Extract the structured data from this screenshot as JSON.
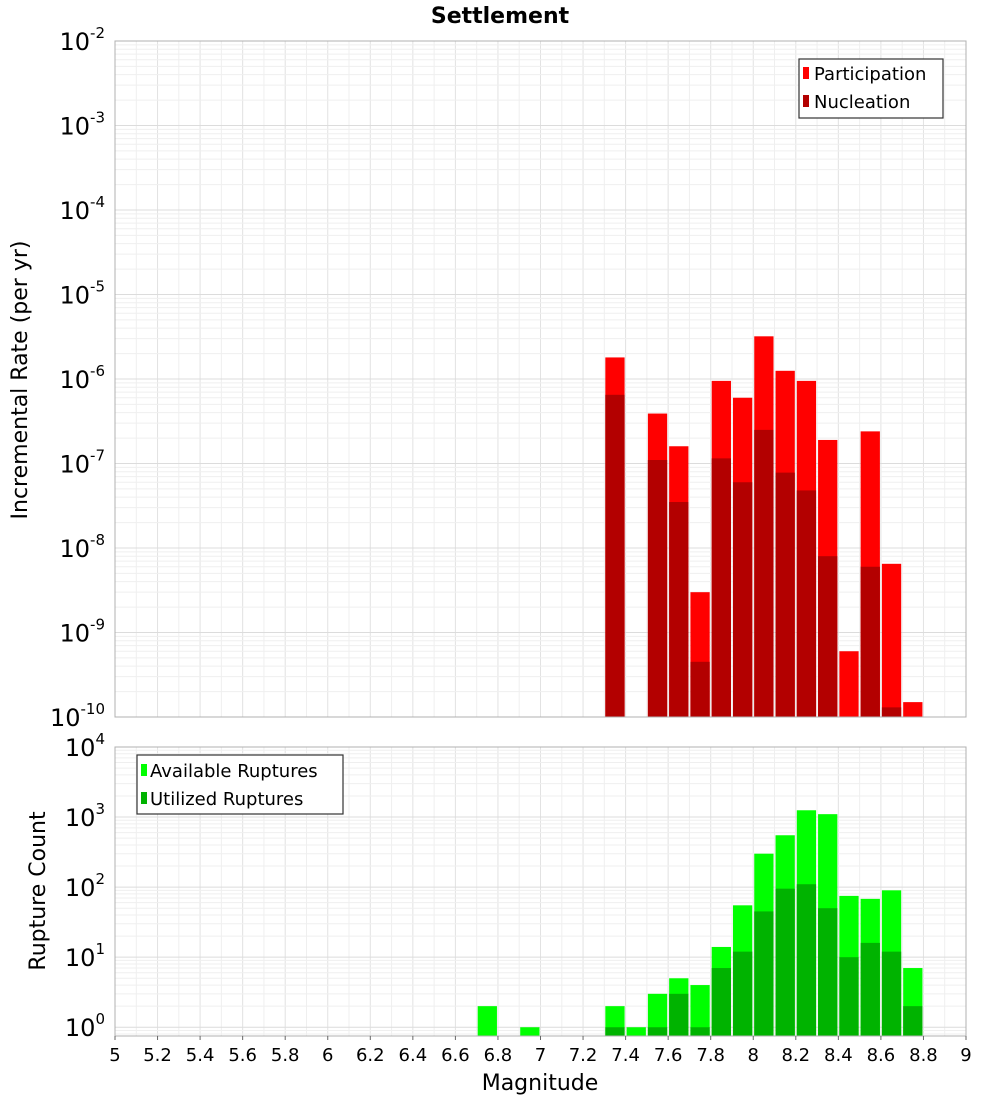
{
  "title": "Settlement",
  "xlabel": "Magnitude",
  "chart_data": [
    {
      "type": "bar",
      "title": "Settlement",
      "xlabel": "",
      "ylabel": "Incremental Rate (per yr)",
      "yscale": "log",
      "xlim": [
        5,
        9
      ],
      "ylim": [
        1e-10,
        0.01
      ],
      "yticks": [
        1e-10,
        1e-09,
        1e-08,
        1e-07,
        1e-06,
        1e-05,
        0.0001,
        0.001,
        0.01
      ],
      "ytick_labels": [
        "10^-10",
        "10^-9",
        "10^-8",
        "10^-7",
        "10^-6",
        "10^-5",
        "10^-4",
        "10^-3",
        "10^-2"
      ],
      "grid": true,
      "legend_position": "top-right",
      "bar_width": 0.1,
      "series": [
        {
          "name": "Participation",
          "color": "#ff0000",
          "points": [
            {
              "x": 7.35,
              "y": 1.8e-06
            },
            {
              "x": 7.55,
              "y": 3.9e-07
            },
            {
              "x": 7.65,
              "y": 1.6e-07
            },
            {
              "x": 7.75,
              "y": 3e-09
            },
            {
              "x": 7.85,
              "y": 9.5e-07
            },
            {
              "x": 7.95,
              "y": 6e-07
            },
            {
              "x": 8.05,
              "y": 3.2e-06
            },
            {
              "x": 8.15,
              "y": 1.25e-06
            },
            {
              "x": 8.25,
              "y": 9.5e-07
            },
            {
              "x": 8.35,
              "y": 1.9e-07
            },
            {
              "x": 8.45,
              "y": 6e-10
            },
            {
              "x": 8.55,
              "y": 2.4e-07
            },
            {
              "x": 8.65,
              "y": 6.5e-09
            },
            {
              "x": 8.75,
              "y": 1.5e-10
            }
          ]
        },
        {
          "name": "Nucleation",
          "color": "#b30000",
          "points": [
            {
              "x": 7.35,
              "y": 6.5e-07
            },
            {
              "x": 7.55,
              "y": 1.1e-07
            },
            {
              "x": 7.65,
              "y": 3.5e-08
            },
            {
              "x": 7.75,
              "y": 4.5e-10
            },
            {
              "x": 7.85,
              "y": 1.15e-07
            },
            {
              "x": 7.95,
              "y": 6e-08
            },
            {
              "x": 8.05,
              "y": 2.5e-07
            },
            {
              "x": 8.15,
              "y": 7.8e-08
            },
            {
              "x": 8.25,
              "y": 4.8e-08
            },
            {
              "x": 8.35,
              "y": 8e-09
            },
            {
              "x": 8.55,
              "y": 6e-09
            },
            {
              "x": 8.65,
              "y": 1.3e-10
            }
          ]
        }
      ]
    },
    {
      "type": "bar",
      "title": "",
      "xlabel": "Magnitude",
      "ylabel": "Rupture Count",
      "yscale": "log",
      "xlim": [
        5,
        9
      ],
      "ylim": [
        0.75,
        10000
      ],
      "yticks": [
        1,
        10,
        100,
        1000,
        10000
      ],
      "ytick_labels": [
        "10^0",
        "10^1",
        "10^2",
        "10^3",
        "10^4"
      ],
      "xticks": [
        5,
        5.2,
        5.4,
        5.6,
        5.8,
        6,
        6.2,
        6.4,
        6.6,
        6.8,
        7,
        7.2,
        7.4,
        7.6,
        7.8,
        8,
        8.2,
        8.4,
        8.6,
        8.8,
        9
      ],
      "xtick_labels": [
        "5",
        "5.2",
        "5.4",
        "5.6",
        "5.8",
        "6",
        "6.2",
        "6.4",
        "6.6",
        "6.8",
        "7",
        "7.2",
        "7.4",
        "7.6",
        "7.8",
        "8",
        "8.2",
        "8.4",
        "8.6",
        "8.8",
        "9"
      ],
      "grid": true,
      "legend_position": "top-left",
      "bar_width": 0.1,
      "series": [
        {
          "name": "Available Ruptures",
          "color": "#00ff00",
          "points": [
            {
              "x": 6.75,
              "y": 2
            },
            {
              "x": 6.95,
              "y": 1
            },
            {
              "x": 7.35,
              "y": 2
            },
            {
              "x": 7.45,
              "y": 1
            },
            {
              "x": 7.55,
              "y": 3
            },
            {
              "x": 7.65,
              "y": 5
            },
            {
              "x": 7.75,
              "y": 4
            },
            {
              "x": 7.85,
              "y": 14
            },
            {
              "x": 7.95,
              "y": 55
            },
            {
              "x": 8.05,
              "y": 300
            },
            {
              "x": 8.15,
              "y": 550
            },
            {
              "x": 8.25,
              "y": 1250
            },
            {
              "x": 8.35,
              "y": 1100
            },
            {
              "x": 8.45,
              "y": 75
            },
            {
              "x": 8.55,
              "y": 68
            },
            {
              "x": 8.65,
              "y": 90
            },
            {
              "x": 8.75,
              "y": 7
            }
          ]
        },
        {
          "name": "Utilized Ruptures",
          "color": "#00b300",
          "points": [
            {
              "x": 7.35,
              "y": 1
            },
            {
              "x": 7.55,
              "y": 1
            },
            {
              "x": 7.65,
              "y": 3
            },
            {
              "x": 7.75,
              "y": 1
            },
            {
              "x": 7.85,
              "y": 7
            },
            {
              "x": 7.95,
              "y": 12
            },
            {
              "x": 8.05,
              "y": 45
            },
            {
              "x": 8.15,
              "y": 95
            },
            {
              "x": 8.25,
              "y": 110
            },
            {
              "x": 8.35,
              "y": 50
            },
            {
              "x": 8.45,
              "y": 10
            },
            {
              "x": 8.55,
              "y": 16
            },
            {
              "x": 8.65,
              "y": 12
            },
            {
              "x": 8.75,
              "y": 2
            }
          ]
        }
      ]
    }
  ]
}
